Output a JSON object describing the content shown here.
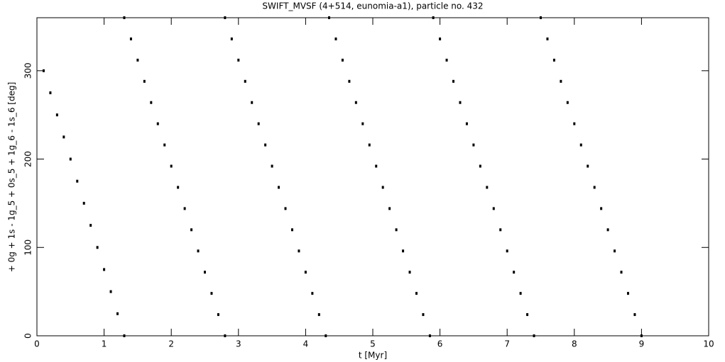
{
  "chart_data": {
    "type": "scatter",
    "title": "SWIFT_MVSF (4+514, eunomia-a1), particle no. 432",
    "x_label": "t [Myr]",
    "y_label": "+ 0g + 1s - 1g_5 + 0s_5 + 1g_6 - 1s_6 [deg]",
    "color": "#000000",
    "xlim": [
      0,
      10
    ],
    "xticks": [
      0,
      1,
      2,
      3,
      4,
      5,
      6,
      7,
      8,
      9,
      10
    ],
    "ylim": [
      0,
      360
    ],
    "yticks": [
      0,
      100,
      200,
      300
    ],
    "x": [
      0.1,
      0.2,
      0.3,
      0.4,
      0.5,
      0.6,
      0.7,
      0.8,
      0.9,
      1.0,
      1.1,
      1.2,
      1.3,
      1.3,
      1.4,
      1.5,
      1.6,
      1.7,
      1.8,
      1.9,
      2.0,
      2.1,
      2.2,
      2.3,
      2.4,
      2.5,
      2.6,
      2.7,
      2.8,
      2.8,
      2.9,
      3.0,
      3.1,
      3.2,
      3.3,
      3.4,
      3.5,
      3.6,
      3.7,
      3.8,
      3.9,
      4.0,
      4.1,
      4.2,
      4.3,
      4.35,
      4.45,
      4.55,
      4.65,
      4.75,
      4.85,
      4.95,
      5.05,
      5.15,
      5.25,
      5.35,
      5.45,
      5.55,
      5.65,
      5.75,
      5.85,
      5.9,
      6.0,
      6.1,
      6.2,
      6.3,
      6.4,
      6.5,
      6.6,
      6.7,
      6.8,
      6.9,
      7.0,
      7.1,
      7.2,
      7.3,
      7.4,
      7.5,
      7.6,
      7.7,
      7.8,
      7.9,
      8.0,
      8.1,
      8.2,
      8.3,
      8.4,
      8.5,
      8.6,
      8.7,
      8.8,
      8.9,
      9.0
    ],
    "y": [
      300,
      275,
      250,
      225,
      200,
      175,
      150,
      125,
      100,
      75,
      50,
      25,
      0,
      360,
      336,
      312,
      288,
      264,
      240,
      216,
      192,
      168,
      144,
      120,
      96,
      72,
      48,
      24,
      0,
      360,
      336,
      312,
      288,
      264,
      240,
      216,
      192,
      168,
      144,
      120,
      96,
      72,
      48,
      24,
      0,
      360,
      336,
      312,
      288,
      264,
      240,
      216,
      192,
      168,
      144,
      120,
      96,
      72,
      48,
      24,
      0,
      360,
      336,
      312,
      288,
      264,
      240,
      216,
      192,
      168,
      144,
      120,
      96,
      72,
      48,
      24,
      0,
      360,
      336,
      312,
      288,
      264,
      240,
      216,
      192,
      168,
      144,
      120,
      96,
      72,
      48,
      24,
      0
    ]
  }
}
